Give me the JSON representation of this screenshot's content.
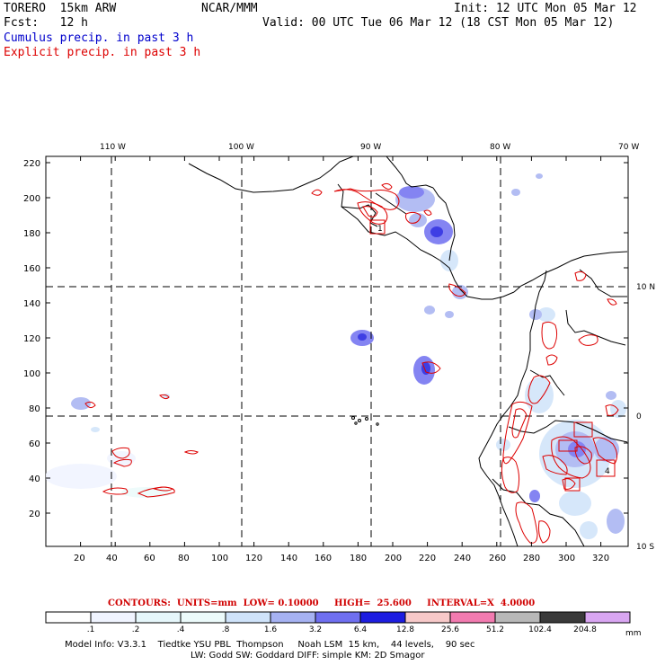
{
  "header": {
    "model": "TORERO  15km ARW",
    "center": "NCAR/MMM",
    "init": "Init: 12 UTC Mon 05 Mar 12",
    "fcst": "Fcst:   12 h",
    "valid": "Valid: 00 UTC Tue 06 Mar 12 (18 CST Mon 05 Mar 12)",
    "legend_blue": "Cumulus precip. in past 3 h",
    "legend_red": "Explicit precip. in past 3 h"
  },
  "colors": {
    "cumulus": "#0000cc",
    "explicit": "#dd0000",
    "grid": "#000000"
  },
  "axes": {
    "left_ticks": [
      "220",
      "200",
      "180",
      "160",
      "140",
      "120",
      "100",
      "80",
      "60",
      "40",
      "20"
    ],
    "bottom_ticks": [
      "20",
      "40",
      "60",
      "80",
      "100",
      "120",
      "140",
      "160",
      "180",
      "200",
      "220",
      "240",
      "260",
      "280",
      "300",
      "320"
    ],
    "top_lon": [
      "110 W",
      "100 W",
      "90 W",
      "80 W",
      "70 W"
    ],
    "right_lat": [
      "10 N",
      "0",
      "10 S"
    ]
  },
  "contours_line": {
    "label": "CONTOURS:  UNITS=mm  LOW= 0.10000     HIGH=  25.600     INTERVAL=X  4.0000"
  },
  "colorbar": {
    "labels": [
      ".1",
      ".2",
      ".4",
      ".8",
      "1.6",
      "3.2",
      "6.4",
      "12.8",
      "25.6",
      "51.2",
      "102.4",
      "204.8"
    ],
    "unit": "mm",
    "colors": [
      "#ffffff",
      "#f0f4ff",
      "#e6f7fb",
      "#ecfbfb",
      "#cfe3fa",
      "#a6b2f2",
      "#6f6ff0",
      "#1d1de0",
      "#f7c9c9",
      "#f27bb0",
      "#b8b8b8",
      "#3a3a3a",
      "#d9a6f2"
    ]
  },
  "model_info": {
    "line1": "Model Info: V3.3.1    Tiedtke YSU PBL  Thompson     Noah LSM  15 km,    44 levels,    90 sec",
    "line2": "LW: Godd SW: Goddard DIFF: simple KM: 2D Smagor"
  },
  "map_labels": {
    "box_markers": [
      "1",
      "4"
    ]
  }
}
